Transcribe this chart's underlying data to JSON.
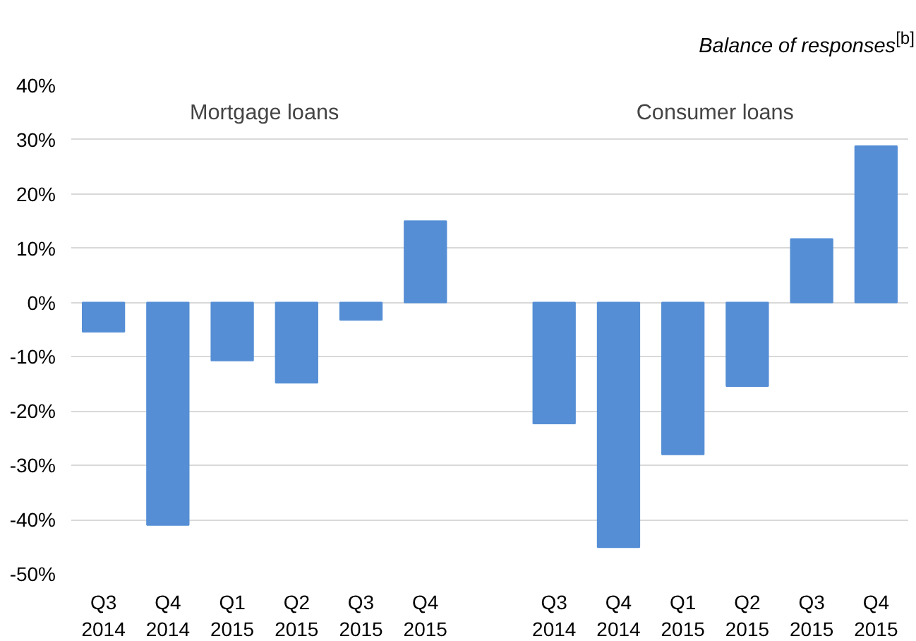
{
  "chart_data": {
    "type": "bar",
    "title": "Balance of responses$^{[b]}$",
    "categories": [
      "Q3\n2014",
      "Q4\n2014",
      "Q1\n2015",
      "Q2\n2015",
      "Q3\n2015",
      "Q4\n2015",
      null,
      "Q3\n2014",
      "Q4\n2014",
      "Q1\n2015",
      "Q2\n2015",
      "Q3\n2015",
      "Q4\n2015"
    ],
    "values": [
      -5.4,
      -41.0,
      -10.7,
      -14.8,
      -3.2,
      15.0,
      null,
      -22.3,
      -45.1,
      -28.0,
      -15.4,
      11.7,
      28.8
    ],
    "color": "#558ed5",
    "ylim": [
      -50,
      40
    ],
    "yticks": [
      {
        "value": -50,
        "label": "-50%"
      },
      {
        "value": -40,
        "label": "-40%"
      },
      {
        "value": -30,
        "label": "-30%"
      },
      {
        "value": -20,
        "label": "-20%"
      },
      {
        "value": -10,
        "label": "-10%"
      },
      {
        "value": 0,
        "label": "0%"
      },
      {
        "value": 10,
        "label": "10%"
      },
      {
        "value": 20,
        "label": "20%"
      },
      {
        "value": 30,
        "label": "30%"
      },
      {
        "value": 40,
        "label": "40%"
      }
    ],
    "grid": "y",
    "annotations": [
      "Mortgage loans",
      "Consumer loans"
    ]
  }
}
